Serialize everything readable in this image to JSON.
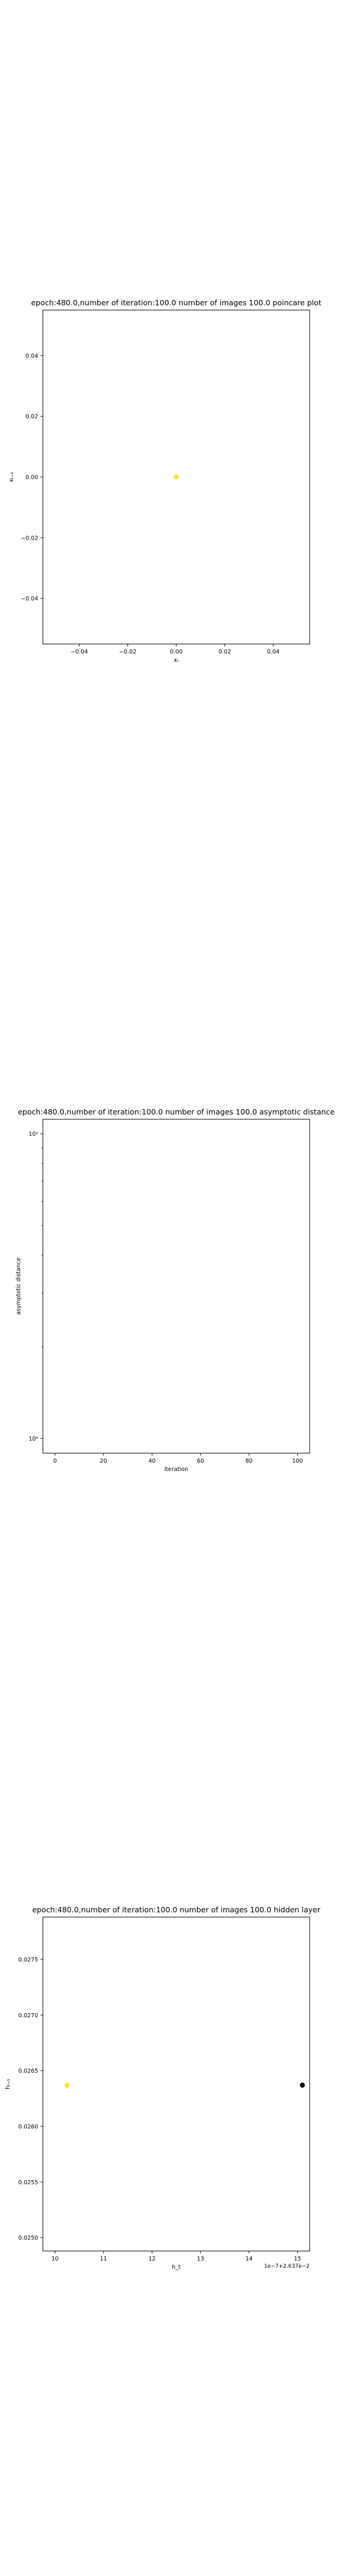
{
  "chart_data": [
    {
      "type": "scatter",
      "title": "epoch:480.0,number of iteration:100.0 number of images 100.0 poincare plot",
      "xlabel": "xₜ",
      "ylabel": "xₜ₊₁",
      "xlim": [
        -0.055,
        0.055
      ],
      "ylim": [
        -0.055,
        0.055
      ],
      "xticks": [
        -0.04,
        -0.02,
        0.0,
        0.02,
        0.04
      ],
      "xtick_labels": [
        "−0.04",
        "−0.02",
        "0.00",
        "0.02",
        "0.04"
      ],
      "yticks": [
        -0.04,
        -0.02,
        0.0,
        0.02,
        0.04
      ],
      "ytick_labels": [
        "−0.04",
        "−0.02",
        "0.00",
        "0.02",
        "0.04"
      ],
      "grid": false,
      "points": [
        {
          "x": 0.0,
          "y": 0.0,
          "color": "#fde725"
        }
      ]
    },
    {
      "type": "line",
      "title": "epoch:480.0,number of iteration:100.0  number of images 100.0 asymptotic distance",
      "xlabel": "iteration",
      "ylabel": "asymptotic distance",
      "xlim": [
        -5,
        105
      ],
      "ylim": [
        1,
        10
      ],
      "yscale": "log",
      "xticks": [
        0,
        20,
        40,
        60,
        80,
        100
      ],
      "xtick_labels": [
        "0",
        "20",
        "40",
        "60",
        "80",
        "100"
      ],
      "yticks": [
        1,
        10
      ],
      "ytick_labels": [
        "10⁰",
        "10¹"
      ],
      "grid": false,
      "series": []
    },
    {
      "type": "scatter",
      "title": "epoch:480.0,number of iteration:100.0  number of images 100.0 hidden layer",
      "xlabel": "h_t",
      "ylabel": "hₜ₊₁",
      "x_offset_text": "1e−7+2.637e−2",
      "xlim": [
        9.75,
        15.25
      ],
      "ylim": [
        0.02488,
        0.02788
      ],
      "xticks": [
        10,
        11,
        12,
        13,
        14,
        15
      ],
      "xtick_labels": [
        "10",
        "11",
        "12",
        "13",
        "14",
        "15"
      ],
      "yticks": [
        0.025,
        0.0255,
        0.026,
        0.0265,
        0.027,
        0.0275
      ],
      "ytick_labels": [
        "0.0250",
        "0.0255",
        "0.0260",
        "0.0265",
        "0.0270",
        "0.0275"
      ],
      "grid": false,
      "points": [
        {
          "x": 10.25,
          "y": 0.02637,
          "color": "#fde725"
        },
        {
          "x": 15.1,
          "y": 0.02637,
          "color": "#000000"
        }
      ]
    }
  ]
}
